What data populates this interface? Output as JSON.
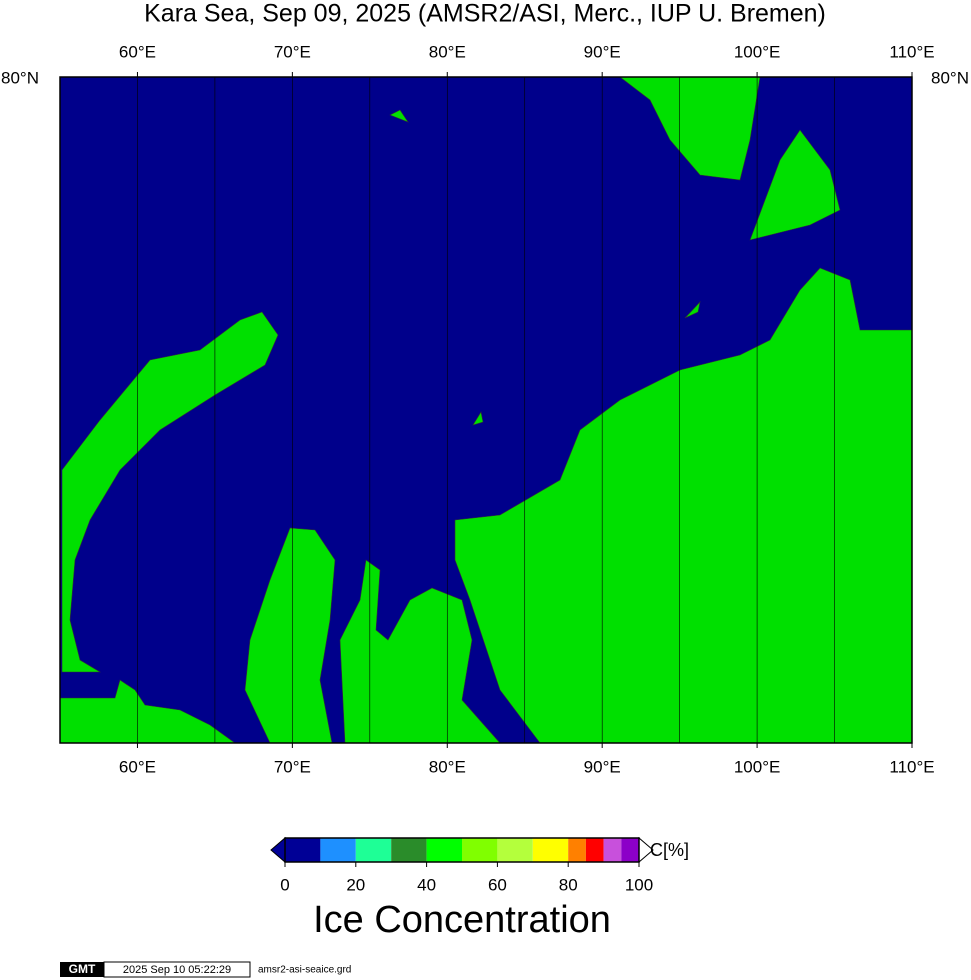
{
  "title": "Kara Sea, Sep 09, 2025 (AMSR2/ASI, Merc., IUP U. Bremen)",
  "map": {
    "lonlim": [
      55,
      110
    ],
    "lon_ticks": [
      {
        "value": 60,
        "label": "60°E"
      },
      {
        "value": 70,
        "label": "70°E"
      },
      {
        "value": 80,
        "label": "80°E"
      },
      {
        "value": 90,
        "label": "90°E"
      },
      {
        "value": 100,
        "label": "100°E"
      },
      {
        "value": 110,
        "label": "110°E"
      }
    ],
    "meridians": [
      60,
      65,
      70,
      75,
      80,
      85,
      90,
      95,
      100,
      105
    ],
    "lat_label": "80°N",
    "ocean_color": "#00008b",
    "land_color": "#00e000"
  },
  "colorbar": {
    "lim": [
      0,
      100
    ],
    "bounds": [
      0,
      10,
      20,
      30,
      40,
      50,
      60,
      70,
      80,
      85,
      90,
      95,
      100
    ],
    "colors": [
      "#000096",
      "#1e90ff",
      "#1eff96",
      "#2a8c2a",
      "#00ff00",
      "#80ff00",
      "#b4ff3c",
      "#ffff00",
      "#ff8000",
      "#ff0000",
      "#c850dc",
      "#8c00c8"
    ],
    "ticks": [
      0,
      20,
      40,
      60,
      80,
      100
    ],
    "unit_label": "C[%]",
    "title": "Ice Concentration"
  },
  "footer": {
    "logo": "GMT",
    "timestamp": "2025 Sep 10 05:22:29",
    "file": "amsr2-asi-seaice.grd"
  }
}
